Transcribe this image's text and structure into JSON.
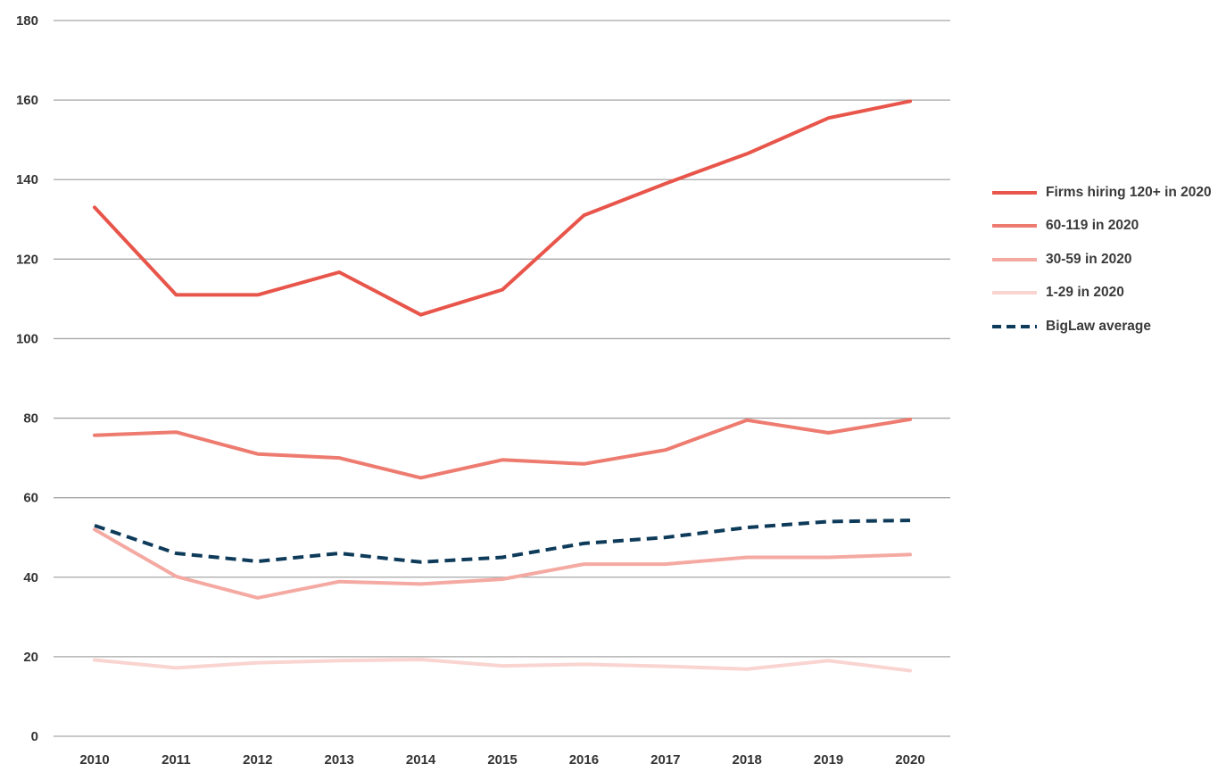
{
  "chart_data": {
    "type": "line",
    "title": "",
    "xlabel": "",
    "ylabel": "",
    "categories": [
      "2010",
      "2011",
      "2012",
      "2013",
      "2014",
      "2015",
      "2016",
      "2017",
      "2018",
      "2019",
      "2020"
    ],
    "ylim": [
      0,
      180
    ],
    "yticks": [
      "0",
      "20",
      "40",
      "60",
      "80",
      "100",
      "120",
      "140",
      "160",
      "180"
    ],
    "grid": true,
    "legend_position": "right",
    "series": [
      {
        "name": "Firms hiring 120+ in 2020",
        "color": "#e8554a",
        "dashed": false,
        "values": [
          133,
          111,
          111,
          116.7,
          106,
          112.3,
          131,
          139,
          146.5,
          155.5,
          159.7
        ]
      },
      {
        "name": "60-119 in 2020",
        "color": "#ee7b70",
        "dashed": false,
        "values": [
          75.7,
          76.5,
          71,
          70,
          65,
          69.5,
          68.5,
          72,
          79.5,
          76.3,
          79.7
        ]
      },
      {
        "name": "30-59 in 2020",
        "color": "#f4aaa2",
        "dashed": false,
        "values": [
          52,
          40.2,
          34.8,
          38.9,
          38.3,
          39.5,
          43.3,
          43.3,
          45,
          45,
          45.7
        ]
      },
      {
        "name": "1-29 in 2020",
        "color": "#f9d4d0",
        "dashed": false,
        "values": [
          19.2,
          17.2,
          18.5,
          19,
          19.3,
          17.7,
          18.1,
          17.6,
          16.9,
          19,
          16.5
        ]
      },
      {
        "name": "BigLaw average",
        "color": "#0e3b5a",
        "dashed": true,
        "values": [
          53,
          46,
          44,
          46,
          43.8,
          45,
          48.5,
          50,
          52.5,
          54,
          54.3
        ]
      }
    ]
  }
}
